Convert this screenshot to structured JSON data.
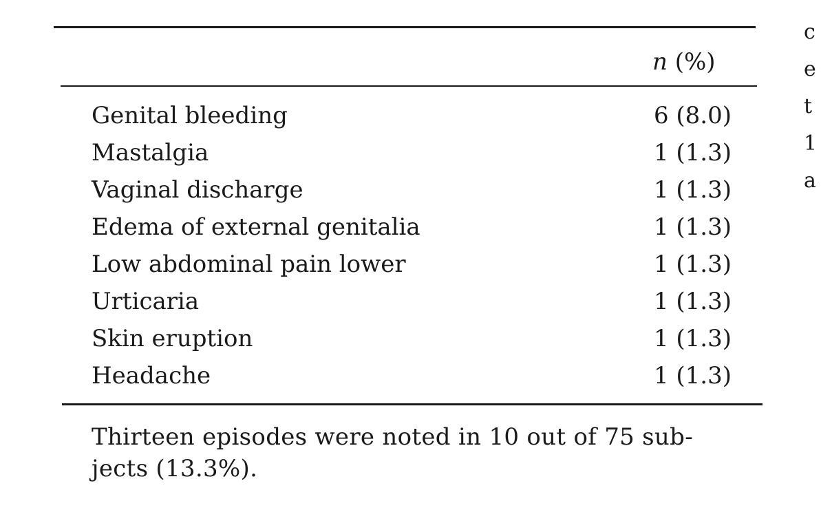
{
  "table": {
    "column_header_italic": "n",
    "column_header_rest": " (%)",
    "rows": [
      {
        "label": "Genital bleeding",
        "value": "6 (8.0)"
      },
      {
        "label": "Mastalgia",
        "value": "1 (1.3)"
      },
      {
        "label": "Vaginal discharge",
        "value": "1 (1.3)"
      },
      {
        "label": "Edema of external genitalia",
        "value": "1 (1.3)"
      },
      {
        "label": "Low abdominal pain lower",
        "value": "1 (1.3)"
      },
      {
        "label": "Urticaria",
        "value": "1 (1.3)"
      },
      {
        "label": "Skin eruption",
        "value": "1 (1.3)"
      },
      {
        "label": "Headache",
        "value": "1 (1.3)"
      }
    ]
  },
  "footnote": {
    "line1": "Thirteen episodes were noted in 10 out of 75 sub-",
    "line2": "jects (13.3%)."
  },
  "edge_text": [
    "c",
    "e",
    "t",
    "1",
    "a"
  ]
}
